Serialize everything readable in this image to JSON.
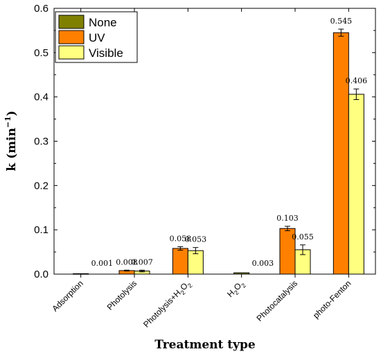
{
  "chart_data": {
    "type": "bar",
    "categories": [
      "Adsorption",
      "Photolysis",
      "Photolysis+H2O2",
      "H2O2",
      "Photocatalysis",
      "photo-Fenton"
    ],
    "category_display": [
      {
        "main": "Adsorption",
        "sub": ""
      },
      {
        "main": "Photolysis",
        "sub": ""
      },
      {
        "main": "Photolysis+H",
        "sub": "2",
        "main2": "O",
        "sub2": "2"
      },
      {
        "main": "H",
        "sub": "2",
        "main2": "O",
        "sub2": "2"
      },
      {
        "main": "Photocatalysis",
        "sub": ""
      },
      {
        "main": "photo-Fenton",
        "sub": ""
      }
    ],
    "series": [
      {
        "name": "None",
        "color": "#808000",
        "values": [
          0.001,
          null,
          null,
          0.003,
          null,
          null
        ],
        "errors": [
          0,
          0,
          0,
          0,
          0,
          0
        ]
      },
      {
        "name": "UV",
        "color": "#ff8000",
        "values": [
          null,
          0.008,
          0.058,
          null,
          0.103,
          0.545
        ],
        "errors": [
          0,
          0.001,
          0.004,
          0,
          0.005,
          0.008
        ]
      },
      {
        "name": "Visible",
        "color": "#ffff80",
        "values": [
          null,
          0.007,
          0.053,
          null,
          0.055,
          0.406
        ],
        "errors": [
          0,
          0.002,
          0.007,
          0,
          0.011,
          0.012
        ]
      }
    ],
    "data_labels": [
      "0.001",
      "0.008",
      "0.007",
      "0.058",
      "0.053",
      "0.003",
      "0.103",
      "0.055",
      "0.545",
      "0.406"
    ],
    "ylabel": "k (min⁻¹)",
    "ylabel_parts": {
      "base": "k (min",
      "sup": "−1",
      "close": ")"
    },
    "xlabel": "Treatment type",
    "ylim": [
      0,
      0.6
    ],
    "yticks": [
      "0.0",
      "0.1",
      "0.2",
      "0.3",
      "0.4",
      "0.5",
      "0.6"
    ],
    "legend_position": "top-left",
    "grid": false
  }
}
